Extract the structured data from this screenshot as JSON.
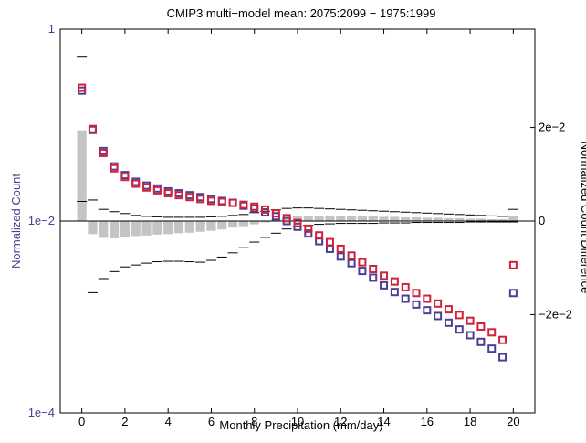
{
  "chart_data": {
    "type": "scatter",
    "title": "CMIP3 multi−model mean: 2075:2099 − 1975:1999",
    "xlabel": "Monthly Precipitation (mm/day)",
    "ylabel_left": "Normalized Count",
    "ylabel_right": "Normalized Count Difference",
    "x_ticks": [
      "0",
      "2",
      "4",
      "6",
      "8",
      "10",
      "12",
      "14",
      "16",
      "18",
      "20"
    ],
    "y_left_ticks": [
      "1",
      "1e−2",
      "1e−4"
    ],
    "y_right_ticks": [
      "2e−2",
      "0",
      "−2e−2"
    ],
    "xlim": [
      -1,
      21
    ],
    "ylim_left_log10": [
      -4,
      0
    ],
    "ylim_right": [
      -0.041,
      0.041
    ],
    "left_axis_scale": "log",
    "colors": {
      "series_1975": "#4b3f94",
      "series_2075": "#d0223c",
      "difference_bar": "#c4c4c4",
      "spread_tick": "#000000",
      "left_axis_text": "#4b3f94"
    },
    "series": [
      {
        "key": "series_1975",
        "marker": "square",
        "x": [
          0,
          0.5,
          1,
          1.5,
          2,
          2.5,
          3,
          3.5,
          4,
          4.5,
          5,
          5.5,
          6,
          6.5,
          7,
          7.5,
          8,
          8.5,
          9,
          9.5,
          10,
          10.5,
          11,
          11.5,
          12,
          12.5,
          13,
          13.5,
          14,
          14.5,
          15,
          15.5,
          16,
          16.5,
          17,
          17.5,
          18,
          18.5,
          19,
          19.5,
          20
        ],
        "log10_values": [
          -0.64,
          -1.05,
          -1.27,
          -1.43,
          -1.52,
          -1.59,
          -1.63,
          -1.66,
          -1.69,
          -1.71,
          -1.73,
          -1.75,
          -1.77,
          -1.79,
          -1.81,
          -1.84,
          -1.87,
          -1.91,
          -1.95,
          -2.0,
          -2.06,
          -2.13,
          -2.21,
          -2.29,
          -2.37,
          -2.44,
          -2.52,
          -2.59,
          -2.67,
          -2.74,
          -2.81,
          -2.87,
          -2.93,
          -2.99,
          -3.06,
          -3.13,
          -3.19,
          -3.26,
          -3.33,
          -3.42,
          -2.75
        ]
      },
      {
        "key": "series_2075",
        "marker": "square",
        "x": [
          0,
          0.5,
          1,
          1.5,
          2,
          2.5,
          3,
          3.5,
          4,
          4.5,
          5,
          5.5,
          6,
          6.5,
          7,
          7.5,
          8,
          8.5,
          9,
          9.5,
          10,
          10.5,
          11,
          11.5,
          12,
          12.5,
          13,
          13.5,
          14,
          14.5,
          15,
          15.5,
          16,
          16.5,
          17,
          17.5,
          18,
          18.5,
          19,
          19.5,
          20
        ],
        "log10_values": [
          -0.61,
          -1.04,
          -1.29,
          -1.45,
          -1.54,
          -1.61,
          -1.65,
          -1.68,
          -1.71,
          -1.73,
          -1.75,
          -1.77,
          -1.79,
          -1.8,
          -1.81,
          -1.83,
          -1.85,
          -1.88,
          -1.92,
          -1.97,
          -2.02,
          -2.08,
          -2.15,
          -2.22,
          -2.29,
          -2.36,
          -2.43,
          -2.5,
          -2.57,
          -2.63,
          -2.69,
          -2.75,
          -2.81,
          -2.86,
          -2.92,
          -2.98,
          -3.04,
          -3.1,
          -3.16,
          -3.24,
          -2.46
        ]
      }
    ],
    "difference": {
      "x": [
        0,
        0.5,
        1,
        1.5,
        2,
        2.5,
        3,
        3.5,
        4,
        4.5,
        5,
        5.5,
        6,
        6.5,
        7,
        7.5,
        8,
        8.5,
        9,
        9.5,
        10,
        10.5,
        11,
        11.5,
        12,
        12.5,
        13,
        13.5,
        14,
        14.5,
        15,
        15.5,
        16,
        16.5,
        17,
        17.5,
        18,
        18.5,
        19,
        19.5,
        20
      ],
      "values": [
        0.0194,
        -0.0028,
        -0.0036,
        -0.0037,
        -0.0034,
        -0.0032,
        -0.0031,
        -0.0029,
        -0.0028,
        -0.0026,
        -0.0025,
        -0.0023,
        -0.0021,
        -0.0018,
        -0.0014,
        -0.0011,
        -0.0007,
        -0.0003,
        0.0003,
        0.0007,
        0.001,
        0.0011,
        0.0011,
        0.0011,
        0.0011,
        0.001,
        0.001,
        0.001,
        0.0009,
        0.0009,
        0.0008,
        0.0008,
        0.0007,
        0.0007,
        0.0006,
        0.0006,
        0.0005,
        0.0005,
        0.0004,
        0.0004,
        0.0011
      ],
      "upper": [
        0.0352,
        0.0045,
        0.0025,
        0.002,
        0.0016,
        0.0012,
        0.001,
        0.0009,
        0.0008,
        0.0008,
        0.0008,
        0.0008,
        0.0009,
        0.001,
        0.0012,
        0.0014,
        0.0018,
        0.0021,
        0.0024,
        0.0027,
        0.0028,
        0.0028,
        0.0027,
        0.0026,
        0.0025,
        0.0024,
        0.0023,
        0.0022,
        0.0021,
        0.002,
        0.0019,
        0.0018,
        0.0017,
        0.0016,
        0.0015,
        0.0014,
        0.0013,
        0.0012,
        0.0011,
        0.001,
        0.0025
      ],
      "lower": [
        0.0042,
        -0.0153,
        -0.0123,
        -0.0108,
        -0.0098,
        -0.0094,
        -0.009,
        -0.0087,
        -0.0086,
        -0.0086,
        -0.0087,
        -0.0088,
        -0.0084,
        -0.0077,
        -0.0068,
        -0.0057,
        -0.0045,
        -0.0035,
        -0.0026,
        -0.0017,
        -0.0012,
        -0.0009,
        -0.0007,
        -0.0006,
        -0.0005,
        -0.0005,
        -0.0005,
        -0.0005,
        -0.0004,
        -0.0004,
        -0.0004,
        -0.0003,
        -0.0003,
        -0.0003,
        -0.0003,
        -0.0003,
        -0.0002,
        -0.0002,
        -0.0002,
        -0.0002,
        -0.0002
      ]
    }
  }
}
